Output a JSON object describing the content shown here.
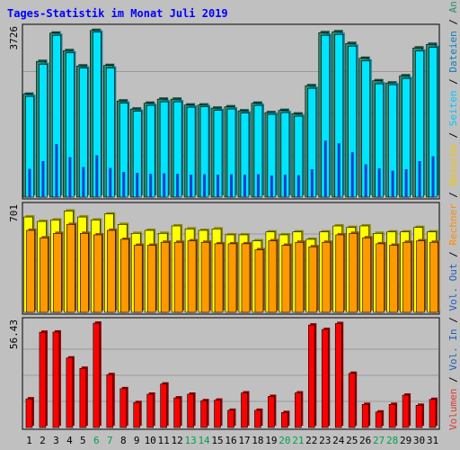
{
  "chart_data": {
    "type": "bar",
    "title": "Tages-Statistik im Monat Juli 2019",
    "categories": [
      "1",
      "2",
      "3",
      "4",
      "5",
      "6",
      "7",
      "8",
      "9",
      "10",
      "11",
      "12",
      "13",
      "14",
      "15",
      "16",
      "17",
      "18",
      "19",
      "20",
      "21",
      "22",
      "23",
      "24",
      "25",
      "26",
      "27",
      "28",
      "29",
      "30",
      "31"
    ],
    "weekend_days": [
      "6",
      "7",
      "13",
      "14",
      "20",
      "21",
      "27",
      "28"
    ],
    "panels": [
      {
        "id": "top",
        "max_label": "3726",
        "ylim": [
          0,
          3726
        ],
        "grid": true,
        "series": [
          {
            "name": "Anfragen",
            "color": "#2e8b6e",
            "values": [
              2290,
              3020,
              3650,
              3260,
              2920,
              3710,
              2930,
              2140,
              1960,
              2090,
              2180,
              2180,
              2050,
              2050,
              1980,
              2010,
              1920,
              2090,
              1880,
              1930,
              1850,
              2480,
              3660,
              3680,
              3420,
              3090,
              2590,
              2540,
              2700,
              3320,
              3400
            ]
          },
          {
            "name": "Dateien",
            "color": "#00e5ff",
            "values": [
              2240,
              2950,
              3600,
              3210,
              2870,
              3670,
              2870,
              2090,
              1910,
              2040,
              2120,
              2120,
              2000,
              2010,
              1930,
              1960,
              1870,
              2040,
              1840,
              1880,
              1800,
              2420,
              3600,
              3620,
              3360,
              3030,
              2520,
              2500,
              2640,
              3250,
              3330
            ]
          },
          {
            "name": "Seiten",
            "color": "#1a3fd0",
            "values": [
              630,
              800,
              1180,
              890,
              670,
              930,
              650,
              560,
              540,
              520,
              530,
              520,
              500,
              510,
              500,
              510,
              500,
              510,
              480,
              500,
              490,
              620,
              1260,
              1200,
              1000,
              730,
              640,
              590,
              620,
              800,
              910
            ]
          }
        ]
      },
      {
        "id": "middle",
        "max_label": "701",
        "ylim": [
          0,
          701
        ],
        "grid": true,
        "series": [
          {
            "name": "Besuche",
            "color": "#ffff00",
            "values": [
              640,
              610,
              620,
              680,
              640,
              620,
              660,
              590,
              530,
              550,
              530,
              580,
              560,
              550,
              560,
              520,
              520,
              480,
              540,
              520,
              540,
              490,
              540,
              580,
              570,
              580,
              530,
              540,
              540,
              570,
              540
            ]
          },
          {
            "name": "Rechner",
            "color": "#ff9900",
            "values": [
              550,
              500,
              530,
              590,
              530,
              520,
              550,
              490,
              450,
              450,
              470,
              470,
              480,
              470,
              460,
              460,
              460,
              420,
              480,
              450,
              470,
              440,
              470,
              520,
              530,
              500,
              460,
              450,
              470,
              480,
              470
            ]
          }
        ]
      },
      {
        "id": "bottom",
        "max_label": "56.43",
        "ylim": [
          0,
          56.43
        ],
        "grid": true,
        "series": [
          {
            "name": "Volumen",
            "color": "#ff0000",
            "values": [
              15.5,
              51.5,
              51.6,
              37.6,
              32.0,
              56.4,
              28.6,
              21.0,
              13.5,
              18.0,
              23.5,
              16.0,
              18.0,
              14.5,
              14.8,
              9.3,
              18.7,
              9.3,
              16.8,
              8.1,
              18.7,
              55.4,
              53.0,
              56.2,
              29.3,
              12.5,
              8.4,
              12.5,
              17.5,
              12.0,
              15.2
            ]
          }
        ]
      }
    ],
    "legend_right": [
      {
        "text": "Anfragen",
        "color": "#2e8b6e"
      },
      {
        "text": "Dateien",
        "color": "#0b7fbf"
      },
      {
        "text": "Seiten",
        "color": "#00c8ff"
      },
      {
        "text": "Besuche",
        "color": "#f5c400"
      },
      {
        "text": "Rechner",
        "color": "#ff8c00"
      },
      {
        "text": "Vol. Out",
        "color": "#1e5fbf"
      },
      {
        "text": "Vol. In",
        "color": "#1e5fbf"
      },
      {
        "text": "Volumen",
        "color": "#e03a3a"
      }
    ],
    "legend_separator": " / "
  }
}
